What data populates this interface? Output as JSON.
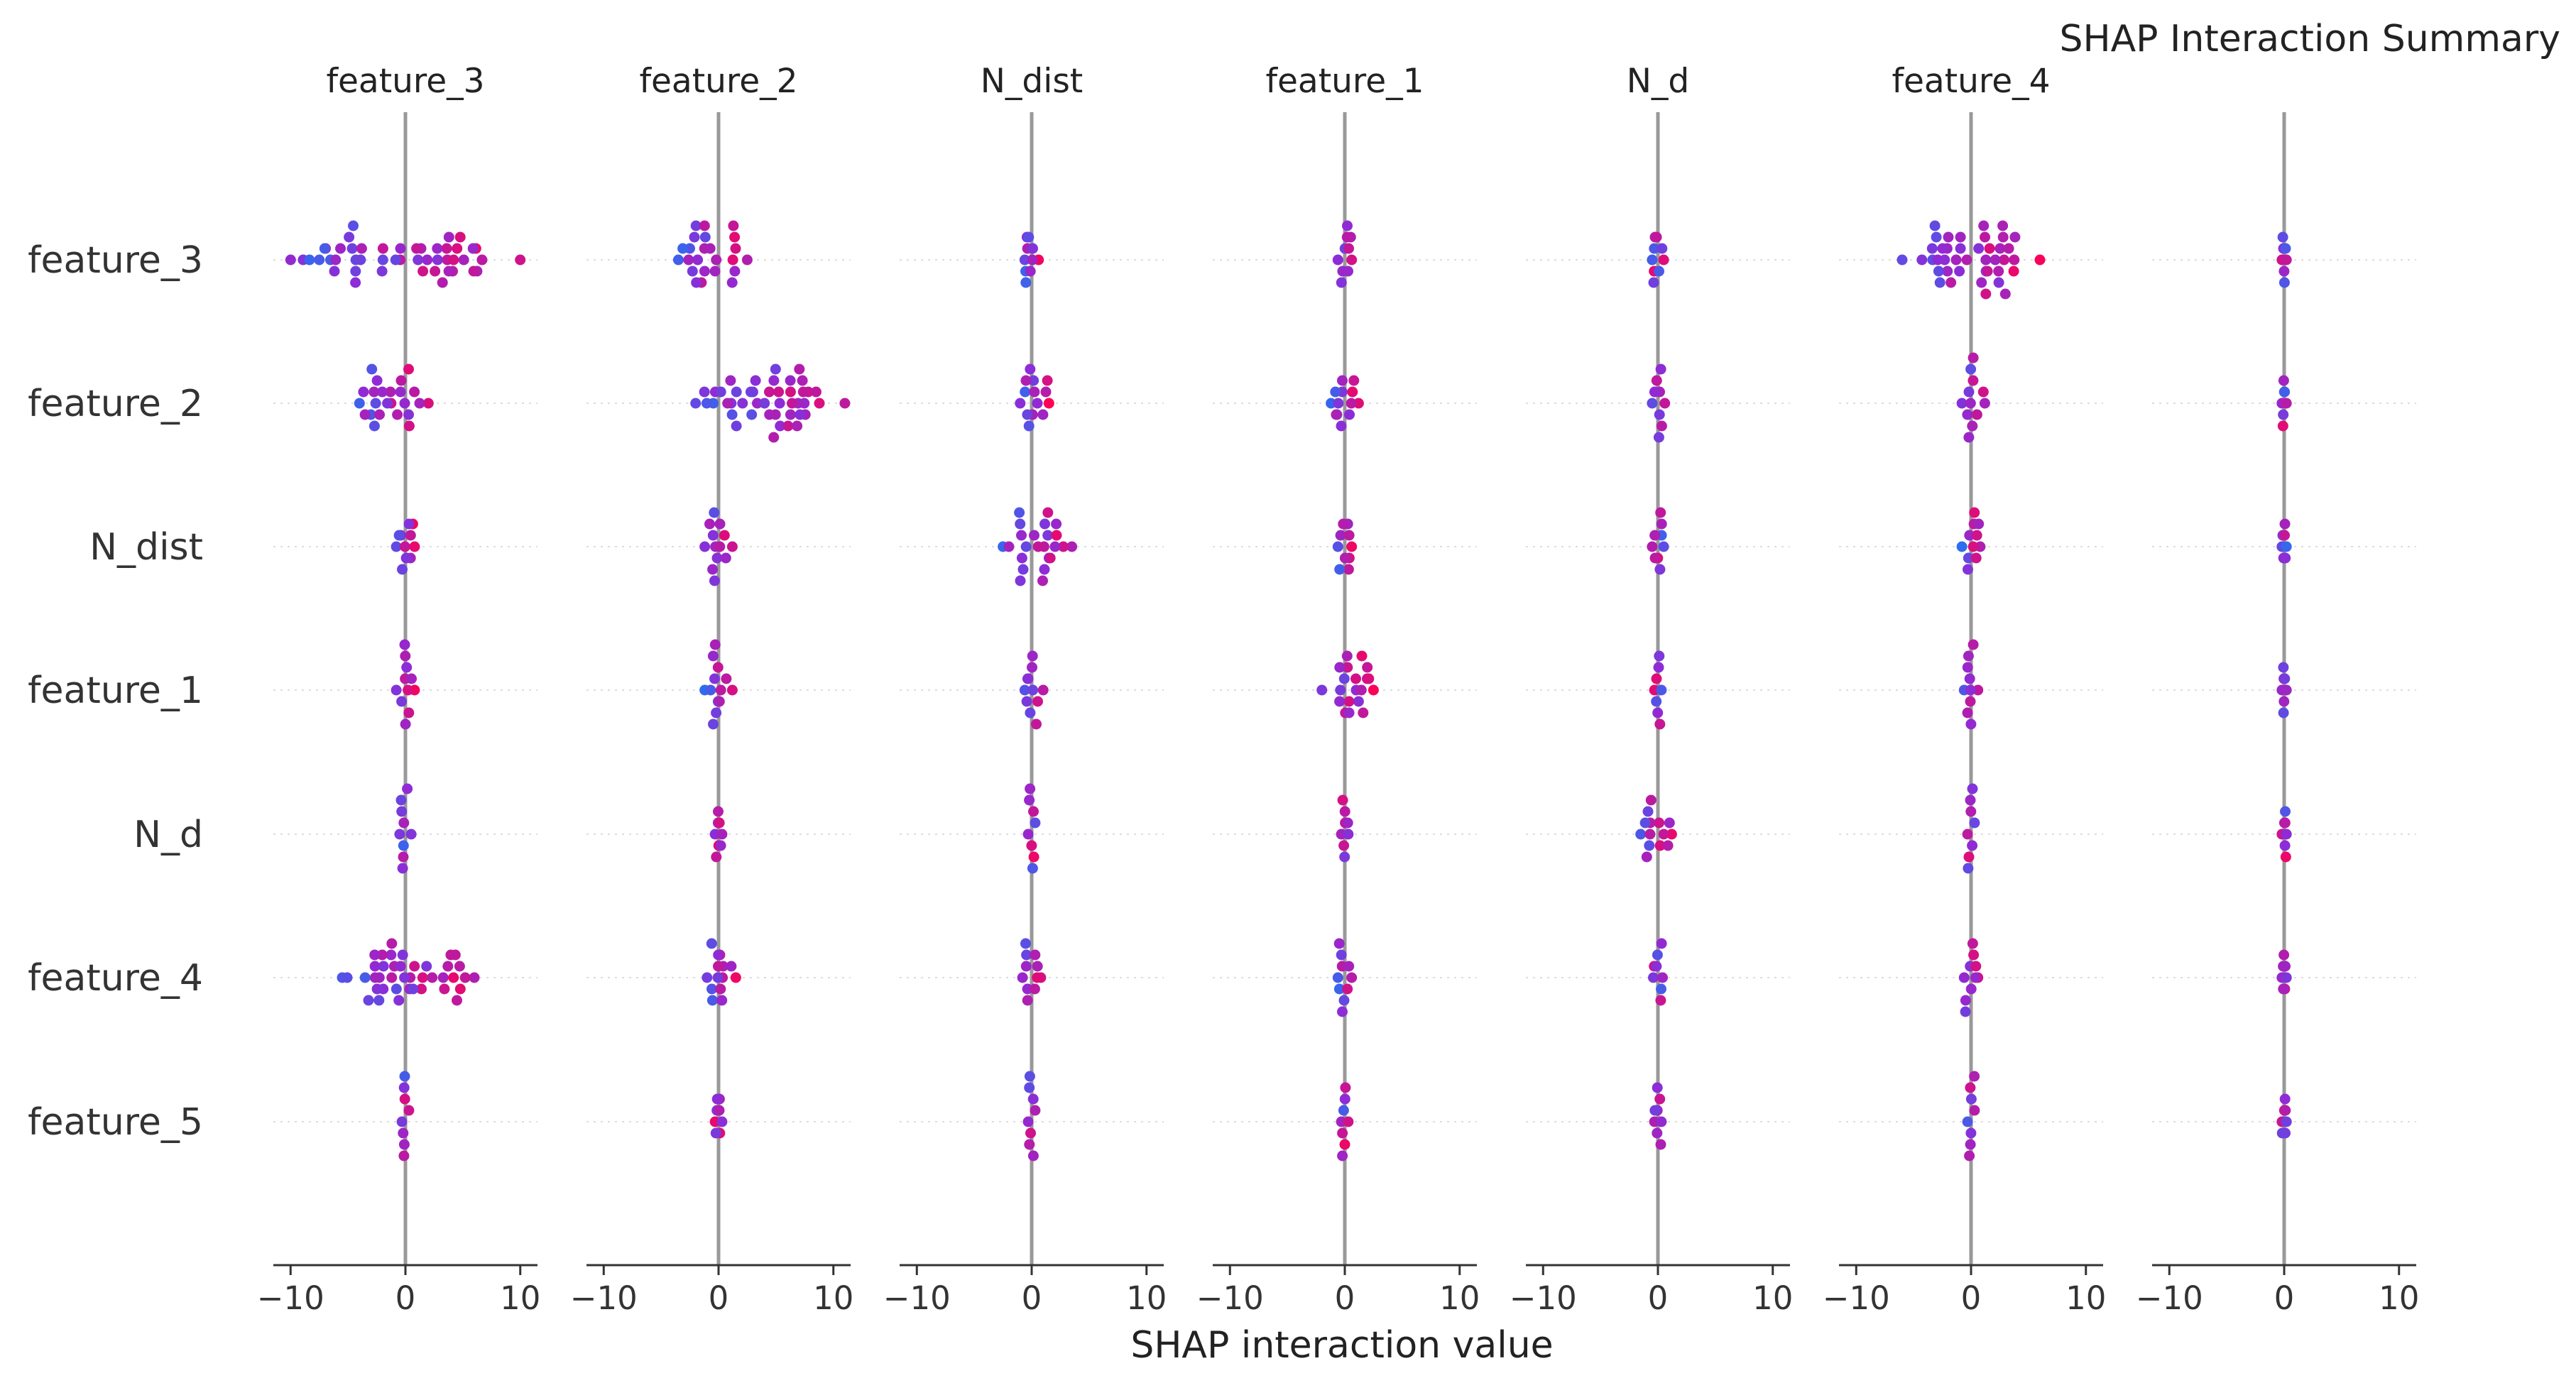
{
  "chart_data": {
    "type": "scatter",
    "title": "SHAP Interaction Summary",
    "xlabel": "SHAP interaction value",
    "ylabel": "",
    "xlim": [
      -11.5,
      11.5
    ],
    "xticks": [
      -10,
      0,
      10
    ],
    "xtick_labels": [
      "−10",
      "0",
      "10"
    ],
    "grid": "dotted horizontal row guides",
    "legend": "none",
    "features": [
      "feature_3",
      "feature_2",
      "N_dist",
      "feature_1",
      "N_d",
      "feature_4",
      "feature_5"
    ],
    "panels": [
      "feature_3",
      "feature_2",
      "N_dist",
      "feature_1",
      "N_d",
      "feature_4",
      ""
    ],
    "colors": {
      "low": "#008bfb",
      "mid": "#8f2bd6",
      "high": "#ff0052",
      "zero_line": "#999999",
      "grid": "#dddddd",
      "axis": "#333333"
    },
    "spread": [
      [
        [
          -10,
          10
        ],
        [
          -3.5,
          2.5
        ],
        [
          -0.6,
          0.6
        ],
        [
          -0.6,
          0.6
        ],
        [
          -0.5,
          0.5
        ],
        [
          -6,
          6
        ],
        [
          -0.2,
          0.2
        ]
      ],
      [
        [
          -4,
          2
        ],
        [
          -2,
          11
        ],
        [
          -1,
          1.5
        ],
        [
          -1.2,
          1.2
        ],
        [
          -0.5,
          0.6
        ],
        [
          -0.8,
          1.2
        ],
        [
          -0.2,
          0.2
        ]
      ],
      [
        [
          -0.8,
          0.8
        ],
        [
          -1.2,
          1.2
        ],
        [
          -2.5,
          3.5
        ],
        [
          -0.6,
          0.6
        ],
        [
          -0.5,
          0.5
        ],
        [
          -0.8,
          0.8
        ],
        [
          -0.2,
          0.2
        ]
      ],
      [
        [
          -0.8,
          0.8
        ],
        [
          -1.2,
          1.2
        ],
        [
          -0.6,
          1.0
        ],
        [
          -2,
          2.5
        ],
        [
          -0.3,
          0.3
        ],
        [
          -0.6,
          0.6
        ],
        [
          -0.2,
          0.2
        ]
      ],
      [
        [
          -0.5,
          0.5
        ],
        [
          -0.3,
          0.3
        ],
        [
          -0.3,
          0.3
        ],
        [
          -0.3,
          0.3
        ],
        [
          -1.5,
          1.2
        ],
        [
          -0.3,
          0.3
        ],
        [
          -0.2,
          0.2
        ]
      ],
      [
        [
          -5.5,
          6
        ],
        [
          -1,
          1.5
        ],
        [
          -0.8,
          0.8
        ],
        [
          -0.6,
          0.6
        ],
        [
          -0.4,
          0.4
        ],
        [
          -0.6,
          0.6
        ],
        [
          -0.2,
          0.2
        ]
      ],
      [
        [
          -0.3,
          0.3
        ],
        [
          -0.3,
          0.3
        ],
        [
          -0.3,
          0.3
        ],
        [
          -0.3,
          0.3
        ],
        [
          -0.3,
          0.3
        ],
        [
          -0.3,
          0.3
        ],
        [
          -0.2,
          0.2
        ]
      ]
    ],
    "note": "Beeswarm per (row feature, panel feature); color encodes feature value from low (blue) to high (red). Approximate spreads per cell are listed in row-by-panel order."
  }
}
